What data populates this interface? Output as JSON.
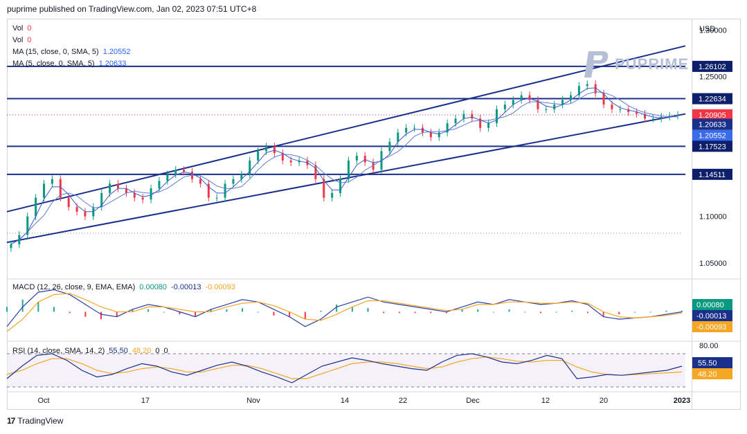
{
  "header": {
    "text": "puprime published on TradingView.com, Jan 02, 2023 07:51 UTC+8"
  },
  "legend": {
    "vol1_label": "Vol",
    "vol1_value": "0",
    "vol2_label": "Vol",
    "vol2_value": "0",
    "ma15_label": "MA (15, close, 0, SMA, 5)",
    "ma15_value": "1.20552",
    "ma5_label": "MA (5, close, 0, SMA, 5)",
    "ma5_value": "1.20633"
  },
  "macd_legend": {
    "label": "MACD (12, 26, close, 9, EMA, EMA)",
    "v1": "0.00080",
    "v2": "-0.00013",
    "v3": "-0.00093"
  },
  "rsi_legend": {
    "label": "RSI (14, close, SMA, 14, 2)",
    "v1": "55.50",
    "v2": "48.20",
    "v3": "0",
    "v4": "0"
  },
  "watermark": {
    "text": "PUPRIME"
  },
  "footer": {
    "brand": "TradingView"
  },
  "colors": {
    "line": "#1a2f8a",
    "ma_light": "#5b7fd6",
    "candle_up": "#089981",
    "candle_down": "#f23645",
    "macd_line": "#2a3fa8",
    "signal": "#f5a623",
    "rsi": "#1a2f8a",
    "rsi_ma": "#f5a623"
  },
  "chart_data": [
    {
      "type": "candlestick",
      "title": "",
      "currency_label": "USD",
      "y_ticks": [
        "1.30000",
        "1.25000",
        "1.10000",
        "1.05000"
      ],
      "ylim": [
        1.035,
        1.31
      ],
      "x_ticks": [
        "Oct",
        "17",
        "Nov",
        "14",
        "22",
        "Dec",
        "12",
        "20",
        "2023"
      ],
      "horizontal_levels": [
        1.26102,
        1.22634,
        1.17523,
        1.14511
      ],
      "price_labels": [
        {
          "value": "1.26102",
          "kind": "level"
        },
        {
          "value": "1.22634",
          "kind": "level"
        },
        {
          "value": "1.20905",
          "kind": "last"
        },
        {
          "value": "1.20633",
          "kind": "ma5"
        },
        {
          "value": "1.20552",
          "kind": "ma15"
        },
        {
          "value": "1.17523",
          "kind": "level"
        },
        {
          "value": "1.14511",
          "kind": "level"
        }
      ],
      "channel_upper": [
        {
          "x": 0,
          "y": 1.105
        },
        {
          "x": 1,
          "y": 1.283
        }
      ],
      "channel_lower": [
        {
          "x": 0,
          "y": 1.072
        },
        {
          "x": 1,
          "y": 1.21
        }
      ],
      "dotted_levels": [
        1.20905,
        1.082
      ],
      "close_series": [
        1.07,
        1.08,
        1.1,
        1.12,
        1.135,
        1.14,
        1.12,
        1.11,
        1.105,
        1.1,
        1.11,
        1.125,
        1.135,
        1.13,
        1.125,
        1.12,
        1.118,
        1.13,
        1.138,
        1.145,
        1.15,
        1.148,
        1.14,
        1.135,
        1.12,
        1.12,
        1.135,
        1.14,
        1.145,
        1.16,
        1.17,
        1.175,
        1.168,
        1.16,
        1.158,
        1.16,
        1.155,
        1.14,
        1.12,
        1.125,
        1.14,
        1.16,
        1.165,
        1.158,
        1.15,
        1.17,
        1.18,
        1.19,
        1.195,
        1.195,
        1.19,
        1.185,
        1.19,
        1.2,
        1.205,
        1.21,
        1.205,
        1.195,
        1.2,
        1.215,
        1.22,
        1.225,
        1.23,
        1.225,
        1.215,
        1.215,
        1.22,
        1.225,
        1.23,
        1.24,
        1.242,
        1.232,
        1.22,
        1.215,
        1.215,
        1.212,
        1.21,
        1.205,
        1.205,
        1.207,
        1.208,
        1.209
      ]
    },
    {
      "type": "line",
      "title": "MACD (12, 26, close, 9, EMA, EMA)",
      "y_ticks": [],
      "value_labels": [
        "0.00080",
        "-0.00013",
        "-0.00093"
      ],
      "series": [
        {
          "name": "MACD",
          "values": [
            -0.6,
            0.2,
            0.8,
            0.9,
            0.7,
            0.3,
            -0.1,
            -0.2,
            0.1,
            0.3,
            0.2,
            0.0,
            -0.2,
            0.1,
            0.3,
            0.5,
            0.4,
            0.1,
            -0.2,
            -0.6,
            -0.3,
            0.2,
            0.4,
            0.6,
            0.4,
            0.3,
            0.2,
            0.1,
            0.0,
            0.2,
            0.4,
            0.3,
            0.5,
            0.4,
            0.3,
            0.35,
            0.45,
            0.3,
            -0.2,
            -0.3,
            -0.25,
            -0.2,
            -0.1,
            0.0
          ]
        },
        {
          "name": "Signal",
          "values": [
            -0.8,
            -0.3,
            0.4,
            0.7,
            0.75,
            0.5,
            0.2,
            0.0,
            0.0,
            0.2,
            0.2,
            0.1,
            0.0,
            0.0,
            0.2,
            0.35,
            0.4,
            0.25,
            0.0,
            -0.3,
            -0.35,
            -0.1,
            0.2,
            0.45,
            0.45,
            0.35,
            0.25,
            0.15,
            0.05,
            0.1,
            0.3,
            0.3,
            0.4,
            0.4,
            0.35,
            0.35,
            0.4,
            0.35,
            0.0,
            -0.2,
            -0.25,
            -0.2,
            -0.15,
            -0.05
          ]
        }
      ]
    },
    {
      "type": "line",
      "title": "RSI (14, close, SMA, 14, 2)",
      "y_ticks": [
        "80.00"
      ],
      "ylim": [
        25,
        85
      ],
      "bands": [
        70,
        30
      ],
      "value_labels": [
        "55.50",
        "48.20"
      ],
      "series": [
        {
          "name": "RSI",
          "values": [
            40,
            55,
            68,
            70,
            62,
            50,
            42,
            45,
            52,
            58,
            55,
            48,
            44,
            50,
            56,
            60,
            55,
            48,
            42,
            35,
            45,
            55,
            60,
            65,
            62,
            58,
            55,
            52,
            50,
            60,
            68,
            70,
            66,
            60,
            58,
            62,
            68,
            64,
            40,
            42,
            45,
            44,
            46,
            48,
            50,
            55
          ]
        },
        {
          "name": "RSI MA",
          "values": [
            45,
            50,
            58,
            64,
            64,
            58,
            50,
            46,
            48,
            52,
            54,
            52,
            48,
            48,
            52,
            56,
            56,
            52,
            46,
            40,
            40,
            46,
            52,
            58,
            60,
            60,
            58,
            55,
            52,
            54,
            60,
            64,
            66,
            64,
            61,
            60,
            62,
            62,
            54,
            48,
            45,
            44,
            45,
            46,
            47,
            48
          ]
        }
      ]
    }
  ]
}
